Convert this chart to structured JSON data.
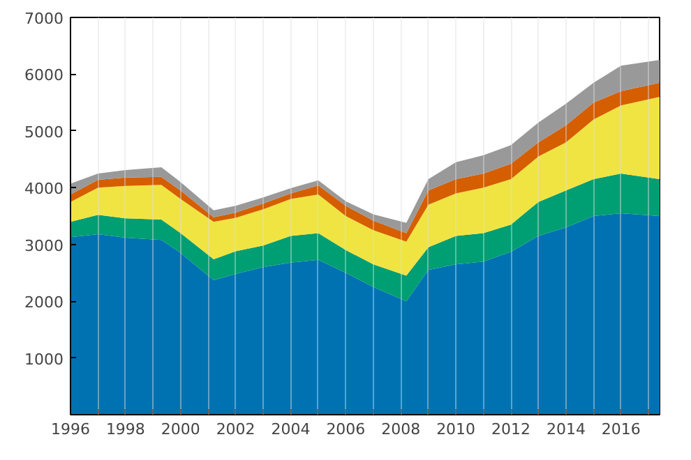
{
  "chart_data": {
    "type": "area",
    "stacked": true,
    "x": [
      1996,
      1997,
      1998,
      1999.3,
      2000,
      2001.2,
      2002,
      2003,
      2004,
      2005,
      2006,
      2007,
      2008.2,
      2009,
      2010,
      2011,
      2012,
      2013,
      2014,
      2015,
      2016,
      2017.4
    ],
    "series": [
      {
        "color": "#0072b2",
        "values": [
          3130,
          3180,
          3120,
          3080,
          2850,
          2370,
          2480,
          2600,
          2680,
          2730,
          2500,
          2250,
          2000,
          2550,
          2650,
          2700,
          2870,
          3150,
          3300,
          3500,
          3550,
          3500
        ]
      },
      {
        "color": "#009e73",
        "values": [
          270,
          340,
          340,
          360,
          350,
          370,
          400,
          380,
          470,
          470,
          400,
          400,
          450,
          400,
          500,
          500,
          480,
          600,
          650,
          650,
          700,
          650
        ]
      },
      {
        "color": "#f0e442",
        "values": [
          350,
          480,
          570,
          610,
          600,
          660,
          590,
          640,
          650,
          680,
          600,
          600,
          600,
          750,
          750,
          800,
          800,
          800,
          850,
          1050,
          1200,
          1450
        ]
      },
      {
        "color": "#d55e00",
        "values": [
          130,
          140,
          150,
          140,
          150,
          80,
          90,
          100,
          100,
          160,
          180,
          170,
          150,
          250,
          250,
          250,
          270,
          250,
          300,
          300,
          250,
          250
        ]
      },
      {
        "color": "#999999",
        "values": [
          190,
          110,
          130,
          170,
          150,
          120,
          120,
          110,
          90,
          90,
          80,
          110,
          180,
          200,
          300,
          320,
          330,
          350,
          380,
          350,
          450,
          400
        ]
      }
    ],
    "xlim": [
      1996,
      2017.4
    ],
    "xticks": [
      1996,
      {
        "value": 1997,
        "label": null
      },
      1998,
      {
        "value": 1999,
        "label": null
      },
      2000,
      {
        "value": 2001,
        "label": null
      },
      2002,
      {
        "value": 2003,
        "label": null
      },
      2004,
      {
        "value": 2005,
        "label": null
      },
      2006,
      {
        "value": 2007,
        "label": null
      },
      2008,
      {
        "value": 2009,
        "label": null
      },
      2010,
      {
        "value": 2011,
        "label": null
      },
      2012,
      {
        "value": 2013,
        "label": null
      },
      2014,
      {
        "value": 2015,
        "label": null
      },
      2016,
      {
        "value": 2017,
        "label": null
      }
    ],
    "ylim": [
      0,
      7000
    ],
    "yticks": [
      1000,
      2000,
      3000,
      4000,
      5000,
      6000,
      7000
    ],
    "grid": "x"
  }
}
